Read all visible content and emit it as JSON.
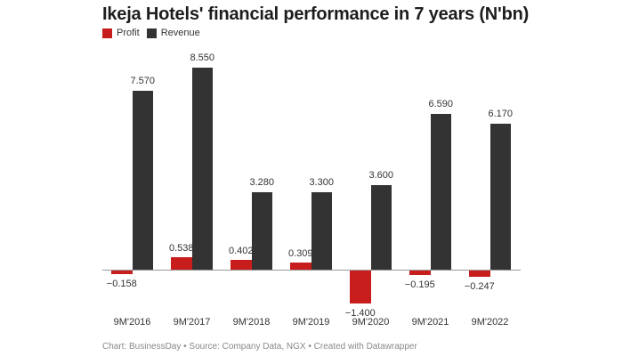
{
  "header": {
    "title": "Ikeja Hotels' financial performance in 7 years (N'bn)"
  },
  "legend": [
    {
      "label": "Profit",
      "color": "#c71e1d"
    },
    {
      "label": "Revenue",
      "color": "#333333"
    }
  ],
  "footer": {
    "text": "Chart: BusinessDay • Source: Company Data, NGX • Created with Datawrapper"
  },
  "chart_data": {
    "type": "bar",
    "title": "Ikeja Hotels' financial performance in 7 years (N'bn)",
    "xlabel": "",
    "ylabel": "N'bn",
    "categories": [
      "9M'2016",
      "9M'2017",
      "9M'2018",
      "9M'2019",
      "9M'2020",
      "9M'2021",
      "9M'2022"
    ],
    "series": [
      {
        "name": "Profit",
        "color": "#c71e1d",
        "values": [
          -0.158,
          0.538,
          0.402,
          0.309,
          -1.4,
          -0.195,
          -0.247
        ],
        "labels": [
          "−0.158",
          "0.538",
          "0.402",
          "0.309",
          "−1.400",
          "−0.195",
          "−0.247"
        ]
      },
      {
        "name": "Revenue",
        "color": "#333333",
        "values": [
          7.57,
          8.55,
          3.28,
          3.3,
          3.6,
          6.59,
          6.17
        ],
        "labels": [
          "7.570",
          "8.550",
          "3.280",
          "3.300",
          "3.600",
          "6.590",
          "6.170"
        ]
      }
    ],
    "ylim": [
      -1.4,
      8.55
    ],
    "grid": false,
    "legend_position": "top-left",
    "data_labels": true
  }
}
